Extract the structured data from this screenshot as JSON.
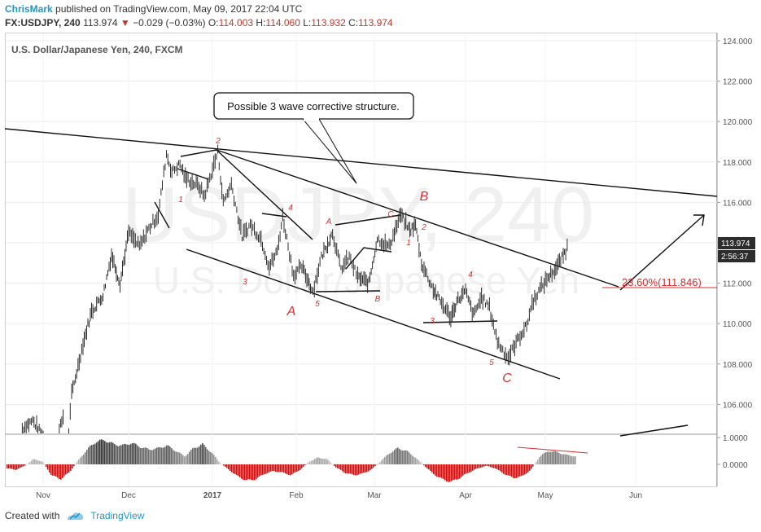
{
  "header": {
    "author": "ChrisMark",
    "published_text": "published on TradingView.com, May 09, 2017 22:04 UTC"
  },
  "ohlc": {
    "symbol": "FX:USDJPY, 240",
    "last": "113.974",
    "change": "−0.029 (−0.03%)",
    "open_label": "O:",
    "open": "114.003",
    "high_label": "H:",
    "high": "114.060",
    "low_label": "L:",
    "low": "113.932",
    "close_label": "C:",
    "close": "113.974"
  },
  "chart_data": {
    "type": "line",
    "title": "U.S. Dollar/Japanese Yen, 240, FXCM",
    "watermark_symbol": "USDJPY, 240",
    "watermark_name": "U.S. Dollar/Japanese Yen",
    "xlabel": "",
    "ylabel": "",
    "ylim": [
      104.6,
      124.4
    ],
    "y_ticks": [
      "124.000",
      "122.000",
      "120.000",
      "118.000",
      "116.000",
      "114.000",
      "112.000",
      "110.000",
      "108.000",
      "106.000"
    ],
    "x_ticks": [
      "Nov",
      "Dec",
      "2017",
      "Feb",
      "Mar",
      "Apr",
      "May",
      "Jun"
    ],
    "current_price_label": "113.974",
    "countdown_label": "2:56:37",
    "fib_label": "23.60%(111.846)",
    "fib_level": 111.846,
    "callout_text": "Possible 3 wave corrective structure.",
    "wave_labels": {
      "minor": [
        "1",
        "2",
        "3",
        "4",
        "5",
        "A",
        "B",
        "C",
        "1",
        "2",
        "3",
        "4",
        "5"
      ],
      "major": [
        "A",
        "B",
        "C"
      ]
    },
    "series": [
      {
        "values": [
          {
            "x": "2016-10-20",
            "y": 104.8
          },
          {
            "x": "2016-10-26",
            "y": 105.2
          },
          {
            "x": "2016-11-01",
            "y": 104.4
          },
          {
            "x": "2016-11-04",
            "y": 103.2
          },
          {
            "x": "2016-11-08",
            "y": 105.4
          },
          {
            "x": "2016-11-09",
            "y": 102.6
          },
          {
            "x": "2016-11-11",
            "y": 106.5
          },
          {
            "x": "2016-11-15",
            "y": 109.0
          },
          {
            "x": "2016-11-18",
            "y": 110.6
          },
          {
            "x": "2016-11-22",
            "y": 111.4
          },
          {
            "x": "2016-11-25",
            "y": 113.4
          },
          {
            "x": "2016-11-28",
            "y": 112.0
          },
          {
            "x": "2016-12-01",
            "y": 114.5
          },
          {
            "x": "2016-12-05",
            "y": 113.8
          },
          {
            "x": "2016-12-08",
            "y": 114.6
          },
          {
            "x": "2016-12-12",
            "y": 115.4
          },
          {
            "x": "2016-12-15",
            "y": 118.4
          },
          {
            "x": "2016-12-17",
            "y": 117.5
          },
          {
            "x": "2016-12-20",
            "y": 117.9
          },
          {
            "x": "2016-12-22",
            "y": 117.2
          },
          {
            "x": "2016-12-27",
            "y": 116.8
          },
          {
            "x": "2016-12-29",
            "y": 116.3
          },
          {
            "x": "2017-01-03",
            "y": 118.5
          },
          {
            "x": "2017-01-05",
            "y": 116.0
          },
          {
            "x": "2017-01-08",
            "y": 116.9
          },
          {
            "x": "2017-01-12",
            "y": 114.3
          },
          {
            "x": "2017-01-15",
            "y": 114.9
          },
          {
            "x": "2017-01-19",
            "y": 114.2
          },
          {
            "x": "2017-01-22",
            "y": 112.8
          },
          {
            "x": "2017-01-25",
            "y": 113.6
          },
          {
            "x": "2017-01-27",
            "y": 115.3
          },
          {
            "x": "2017-01-31",
            "y": 112.4
          },
          {
            "x": "2017-02-03",
            "y": 112.8
          },
          {
            "x": "2017-02-07",
            "y": 111.6
          },
          {
            "x": "2017-02-10",
            "y": 113.3
          },
          {
            "x": "2017-02-14",
            "y": 114.5
          },
          {
            "x": "2017-02-17",
            "y": 112.7
          },
          {
            "x": "2017-02-20",
            "y": 113.3
          },
          {
            "x": "2017-02-23",
            "y": 112.3
          },
          {
            "x": "2017-02-27",
            "y": 112.0
          },
          {
            "x": "2017-03-02",
            "y": 114.2
          },
          {
            "x": "2017-03-06",
            "y": 113.8
          },
          {
            "x": "2017-03-10",
            "y": 115.4
          },
          {
            "x": "2017-03-13",
            "y": 114.6
          },
          {
            "x": "2017-03-15",
            "y": 114.9
          },
          {
            "x": "2017-03-17",
            "y": 113.0
          },
          {
            "x": "2017-03-21",
            "y": 111.7
          },
          {
            "x": "2017-03-23",
            "y": 111.2
          },
          {
            "x": "2017-03-27",
            "y": 110.3
          },
          {
            "x": "2017-03-29",
            "y": 111.1
          },
          {
            "x": "2017-04-01",
            "y": 111.6
          },
          {
            "x": "2017-04-04",
            "y": 110.4
          },
          {
            "x": "2017-04-07",
            "y": 111.3
          },
          {
            "x": "2017-04-10",
            "y": 110.8
          },
          {
            "x": "2017-04-13",
            "y": 109.1
          },
          {
            "x": "2017-04-17",
            "y": 108.3
          },
          {
            "x": "2017-04-19",
            "y": 108.8
          },
          {
            "x": "2017-04-21",
            "y": 109.3
          },
          {
            "x": "2017-04-24",
            "y": 109.9
          },
          {
            "x": "2017-04-26",
            "y": 111.0
          },
          {
            "x": "2017-04-28",
            "y": 111.5
          },
          {
            "x": "2017-05-02",
            "y": 112.3
          },
          {
            "x": "2017-05-05",
            "y": 112.8
          },
          {
            "x": "2017-05-08",
            "y": 113.6
          },
          {
            "x": "2017-05-09",
            "y": 114.0
          }
        ]
      }
    ],
    "oscillator": {
      "y_ticks": [
        "1.0000",
        "0.0000"
      ],
      "values": [
        -0.15,
        -0.2,
        -0.05,
        0.2,
        0.1,
        -0.4,
        -0.55,
        -0.3,
        0.15,
        0.55,
        0.85,
        0.9,
        0.75,
        0.7,
        0.8,
        0.65,
        0.55,
        0.6,
        0.7,
        0.5,
        0.3,
        0.6,
        0.75,
        0.45,
        0.05,
        -0.2,
        -0.45,
        -0.6,
        -0.55,
        -0.35,
        -0.25,
        -0.3,
        -0.4,
        -0.2,
        0.1,
        0.25,
        0.2,
        -0.1,
        -0.3,
        -0.4,
        -0.35,
        -0.2,
        0.1,
        0.4,
        0.6,
        0.5,
        0.25,
        -0.05,
        -0.35,
        -0.55,
        -0.65,
        -0.5,
        -0.3,
        -0.15,
        -0.05,
        -0.15,
        -0.35,
        -0.5,
        -0.45,
        -0.2,
        0.3,
        0.5,
        0.45,
        0.35,
        0.3
      ]
    }
  },
  "footer": {
    "created_with": "Created with",
    "brand": "TradingView"
  },
  "colors": {
    "accent": "#2196c9",
    "red": "#d32f2f",
    "grid": "#e4e4e4",
    "price": "#2d2d2d"
  }
}
